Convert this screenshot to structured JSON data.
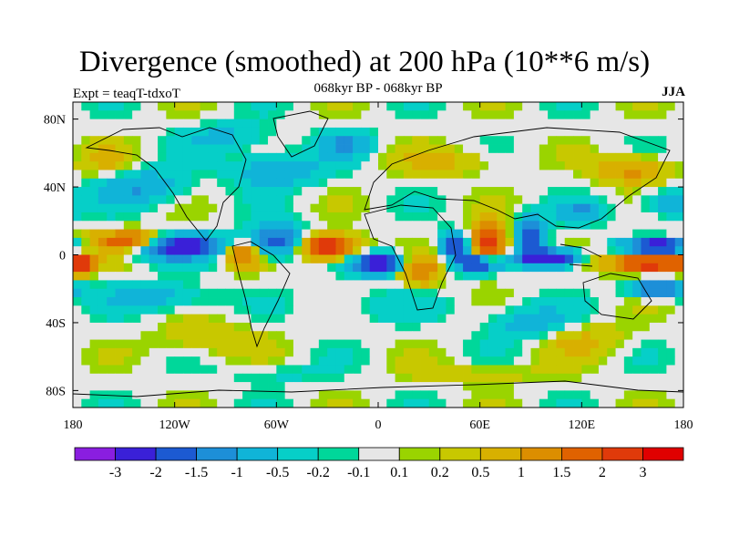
{
  "title": "Divergence (smoothed) at 200 hPa (10**6 m/s)",
  "subtitle": "068kyr BP - 068kyr BP",
  "experiment": "Expt = teaqT-tdxoT",
  "season": "JJA",
  "lat_ticks": [
    {
      "label": "80N",
      "lat": 80
    },
    {
      "label": "40N",
      "lat": 40
    },
    {
      "label": "0",
      "lat": 0
    },
    {
      "label": "40S",
      "lat": -40
    },
    {
      "label": "80S",
      "lat": -80
    }
  ],
  "lon_ticks": [
    {
      "label": "180",
      "lon": -180
    },
    {
      "label": "120W",
      "lon": -120
    },
    {
      "label": "60W",
      "lon": -60
    },
    {
      "label": "0",
      "lon": 0
    },
    {
      "label": "60E",
      "lon": 60
    },
    {
      "label": "120E",
      "lon": 120
    },
    {
      "label": "180",
      "lon": 180
    }
  ],
  "colorbar": {
    "colors": [
      "#8a1ee0",
      "#3a20d8",
      "#1c5ad2",
      "#1d8fd8",
      "#10b4d8",
      "#06cfc8",
      "#00d79a",
      "#e6e6e6",
      "#9ad400",
      "#c8c800",
      "#d8b000",
      "#dc8e00",
      "#e06200",
      "#e03a0a",
      "#e00000"
    ],
    "labels": [
      "-3",
      "-2",
      "-1.5",
      "-1",
      "-0.5",
      "-0.2",
      "-0.1",
      "0.1",
      "0.2",
      "0.5",
      "1",
      "1.5",
      "2",
      "3"
    ],
    "levels": [
      -3,
      -2,
      -1.5,
      -1,
      -0.5,
      -0.2,
      -0.1,
      0.1,
      0.2,
      0.5,
      1,
      1.5,
      2,
      3
    ]
  },
  "field_features": [
    {
      "lon": -120,
      "lat": 5,
      "value": -3,
      "rlon": 25,
      "rlat": 7
    },
    {
      "lon": -145,
      "lat": 8,
      "value": 2.5,
      "rlon": 22,
      "rlat": 6
    },
    {
      "lon": -60,
      "lat": 8,
      "value": -2,
      "rlon": 18,
      "rlat": 9
    },
    {
      "lon": -80,
      "lat": 0,
      "value": 1.8,
      "rlon": 10,
      "rlat": 8
    },
    {
      "lon": -30,
      "lat": 5,
      "value": 2.8,
      "rlon": 18,
      "rlat": 7
    },
    {
      "lon": 0,
      "lat": -5,
      "value": -3,
      "rlon": 14,
      "rlat": 6
    },
    {
      "lon": 25,
      "lat": -10,
      "value": 1.5,
      "rlon": 12,
      "rlat": 8
    },
    {
      "lon": 45,
      "lat": 5,
      "value": -2,
      "rlon": 8,
      "rlat": 8
    },
    {
      "lon": 65,
      "lat": 5,
      "value": 3,
      "rlon": 10,
      "rlat": 12
    },
    {
      "lon": 90,
      "lat": 12,
      "value": -2.2,
      "rlon": 8,
      "rlat": 10
    },
    {
      "lon": 60,
      "lat": -5,
      "value": -3,
      "rlon": 12,
      "rlat": 6
    },
    {
      "lon": 100,
      "lat": -2,
      "value": -3,
      "rlon": 18,
      "rlat": 5
    },
    {
      "lon": 165,
      "lat": 5,
      "value": -3,
      "rlon": 18,
      "rlat": 4
    },
    {
      "lon": 160,
      "lat": -5,
      "value": 3,
      "rlon": 25,
      "rlat": 5
    },
    {
      "lon": 165,
      "lat": -20,
      "value": -2,
      "rlon": 16,
      "rlat": 5
    },
    {
      "lon": -175,
      "lat": -5,
      "value": 2.5,
      "rlon": 6,
      "rlat": 6
    },
    {
      "lon": 120,
      "lat": 25,
      "value": -1,
      "rlon": 15,
      "rlat": 6
    },
    {
      "lon": -140,
      "lat": 40,
      "value": -1,
      "rlon": 25,
      "rlat": 10
    },
    {
      "lon": -60,
      "lat": 50,
      "value": -1,
      "rlon": 25,
      "rlat": 10
    },
    {
      "lon": 40,
      "lat": 55,
      "value": 0.6,
      "rlon": 30,
      "rlat": 8
    },
    {
      "lon": -160,
      "lat": 55,
      "value": 0.5,
      "rlon": 15,
      "rlat": 10
    },
    {
      "lon": 150,
      "lat": 50,
      "value": 1.2,
      "rlon": 20,
      "rlat": 8
    },
    {
      "lon": -20,
      "lat": 65,
      "value": -1,
      "rlon": 15,
      "rlat": 8
    },
    {
      "lon": 0,
      "lat": -30,
      "value": -0.3,
      "rlon": 35,
      "rlat": 10
    },
    {
      "lon": -100,
      "lat": -50,
      "value": 0.5,
      "rlon": 30,
      "rlat": 10
    },
    {
      "lon": 90,
      "lat": -40,
      "value": -0.8,
      "rlon": 25,
      "rlat": 10
    },
    {
      "lon": 120,
      "lat": -50,
      "value": 0.6,
      "rlon": 25,
      "rlat": 10
    },
    {
      "lon": -130,
      "lat": -25,
      "value": -0.8,
      "rlon": 30,
      "rlat": 8
    },
    {
      "lon": -90,
      "lat": 70,
      "value": -0.6,
      "rlon": 25,
      "rlat": 8
    },
    {
      "lon": 60,
      "lat": -70,
      "value": 0.4,
      "rlon": 40,
      "rlat": 6
    },
    {
      "lon": -60,
      "lat": -70,
      "value": -0.3,
      "rlon": 30,
      "rlat": 6
    },
    {
      "lon": 170,
      "lat": 30,
      "value": -0.8,
      "rlon": 15,
      "rlat": 8
    }
  ]
}
